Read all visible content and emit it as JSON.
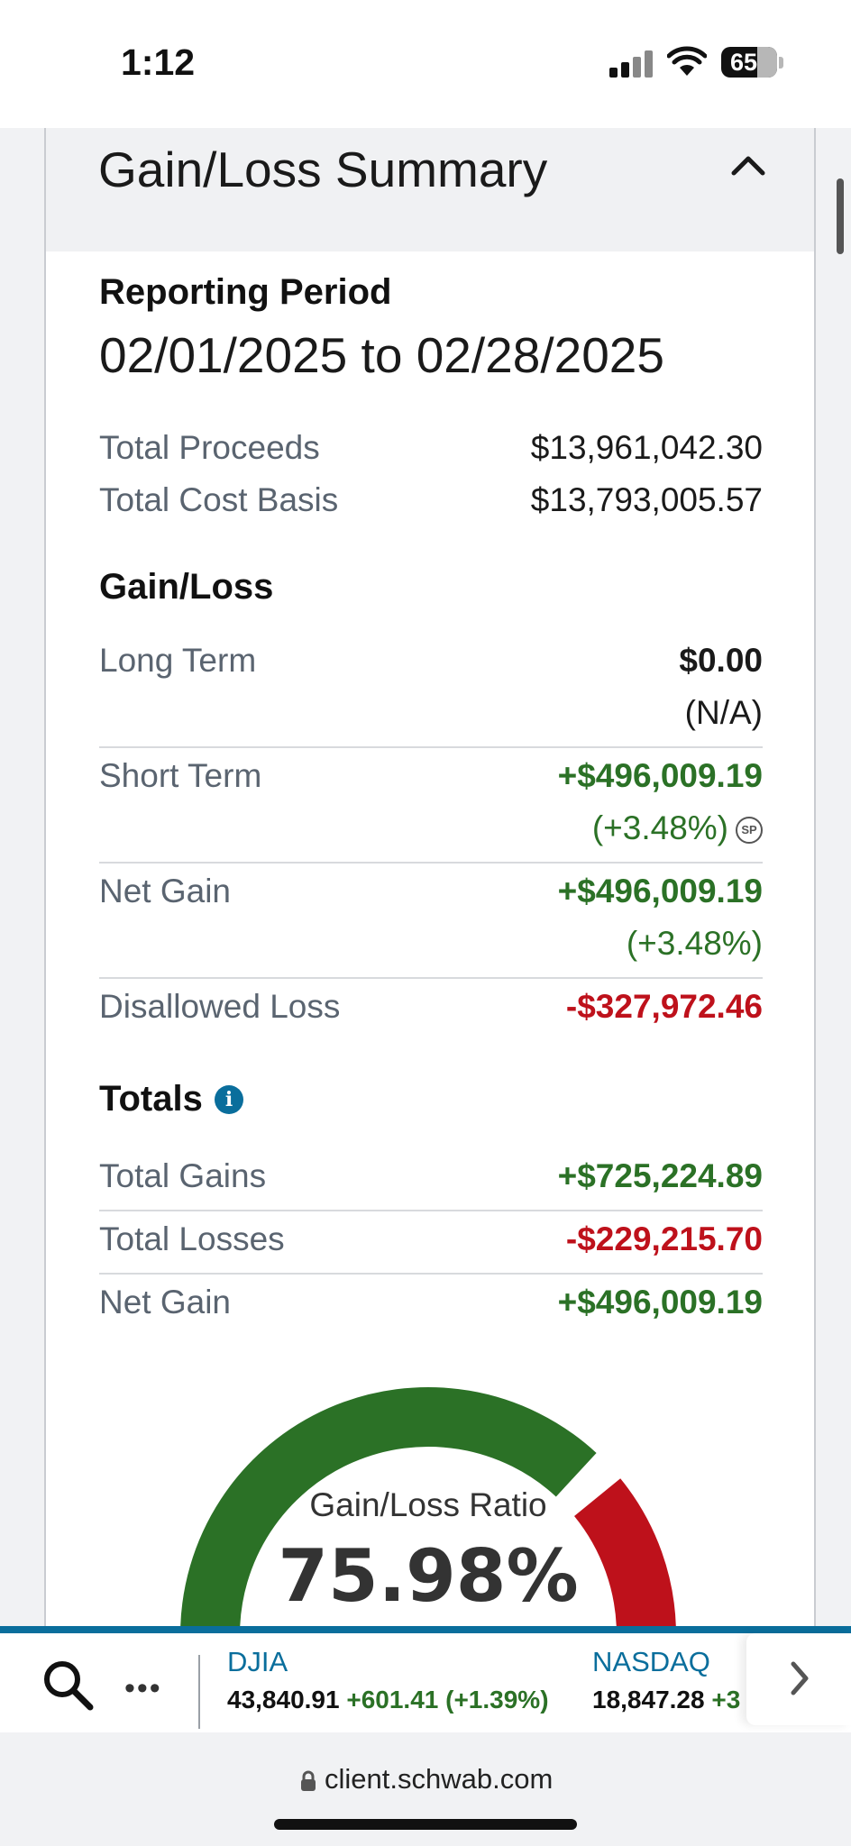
{
  "status_bar": {
    "time": "1:12",
    "battery": "65"
  },
  "card": {
    "title": "Gain/Loss Summary",
    "reporting_period": {
      "label": "Reporting Period",
      "value": "02/01/2025 to 02/28/2025"
    },
    "totals_top": [
      {
        "label": "Total Proceeds",
        "value": "$13,961,042.30"
      },
      {
        "label": "Total Cost Basis",
        "value": "$13,793,005.57"
      }
    ],
    "gain_loss": {
      "heading": "Gain/Loss",
      "long_term": {
        "label": "Long Term",
        "value": "$0.00",
        "sub": "(N/A)"
      },
      "short_term": {
        "label": "Short Term",
        "value": "+$496,009.19",
        "sub": "(+3.48%)",
        "badge": "SP"
      },
      "net_gain": {
        "label": "Net Gain",
        "value": "+$496,009.19",
        "sub": "(+3.48%)"
      },
      "disallowed_loss": {
        "label": "Disallowed Loss",
        "value": "-$327,972.46"
      }
    },
    "totals": {
      "heading": "Totals",
      "info_icon": "i",
      "total_gains": {
        "label": "Total Gains",
        "value": "+$725,224.89"
      },
      "total_losses": {
        "label": "Total Losses",
        "value": "-$229,215.70"
      },
      "net_gain": {
        "label": "Net Gain",
        "value": "+$496,009.19"
      }
    },
    "gauge": {
      "label": "Gain/Loss Ratio",
      "value": "75.98%",
      "ratio": 0.7598,
      "gain_color": "#2b7126",
      "loss_color": "#be111b"
    }
  },
  "ticker": {
    "indices": [
      {
        "name": "DJIA",
        "value": "43,840.91",
        "change": "+601.41 (+1.39%)"
      },
      {
        "name": "NASDAQ",
        "value": "18,847.28",
        "change": "+3"
      }
    ]
  },
  "browser": {
    "url": "client.schwab.com"
  },
  "colors": {
    "accent": "#0a6e9c",
    "gain": "#2b7126",
    "loss": "#be111b"
  }
}
